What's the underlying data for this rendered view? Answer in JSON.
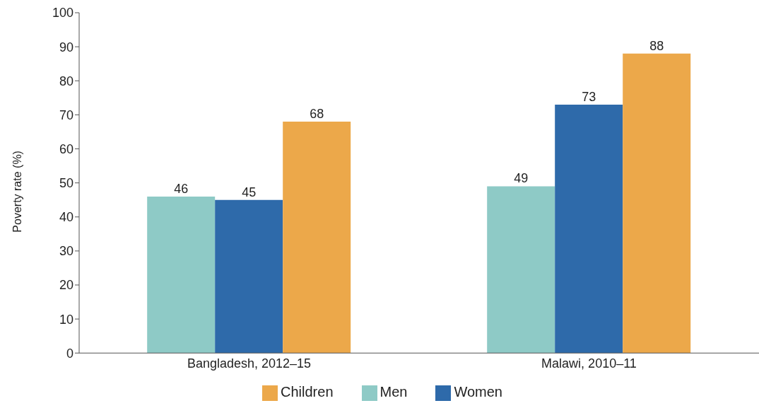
{
  "chart_data": {
    "type": "bar",
    "ylabel": "Poverty rate (%)",
    "categories": [
      "Bangladesh, 2012–15",
      "Malawi, 2010–11"
    ],
    "series": [
      {
        "name": "Men",
        "color": "#8ecac6",
        "values": [
          46,
          49
        ]
      },
      {
        "name": "Women",
        "color": "#2e6aaa",
        "values": [
          45,
          73
        ]
      },
      {
        "name": "Children",
        "color": "#eca84a",
        "values": [
          68,
          88
        ]
      }
    ],
    "ylim": [
      0,
      100
    ],
    "yticks": [
      0,
      10,
      20,
      30,
      40,
      50,
      60,
      70,
      80,
      90,
      100
    ],
    "grid": false,
    "legend": "bottom",
    "data_labels": true
  }
}
